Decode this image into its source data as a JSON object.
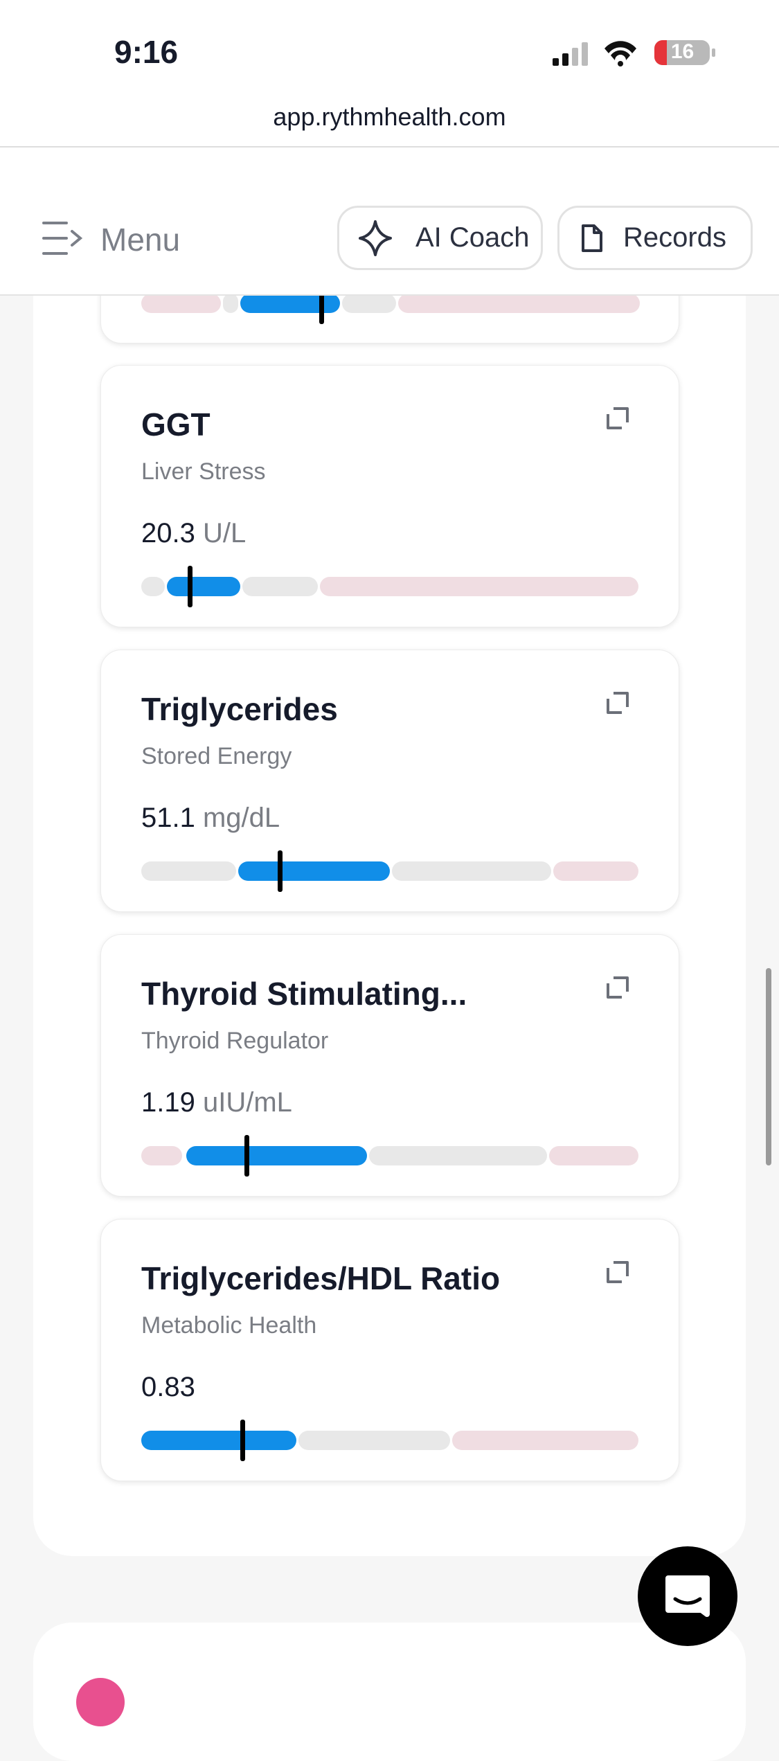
{
  "status_bar": {
    "time": "9:16",
    "battery": "16"
  },
  "browser": {
    "url": "app.rythmhealth.com"
  },
  "header": {
    "menu": "Menu",
    "ai_coach": "AI Coach",
    "records": "Records"
  },
  "cards": [
    {
      "title": "GGT",
      "subtitle": "Liver Stress",
      "value": "20.3",
      "unit": "U/L"
    },
    {
      "title": "Triglycerides",
      "subtitle": "Stored Energy",
      "value": "51.1",
      "unit": "mg/dL"
    },
    {
      "title": "Thyroid Stimulating...",
      "subtitle": "Thyroid Regulator",
      "value": "1.19",
      "unit": "uIU/mL"
    },
    {
      "title": "Triglycerides/HDL Ratio",
      "subtitle": "Metabolic Health",
      "value": "0.83"
    }
  ]
}
